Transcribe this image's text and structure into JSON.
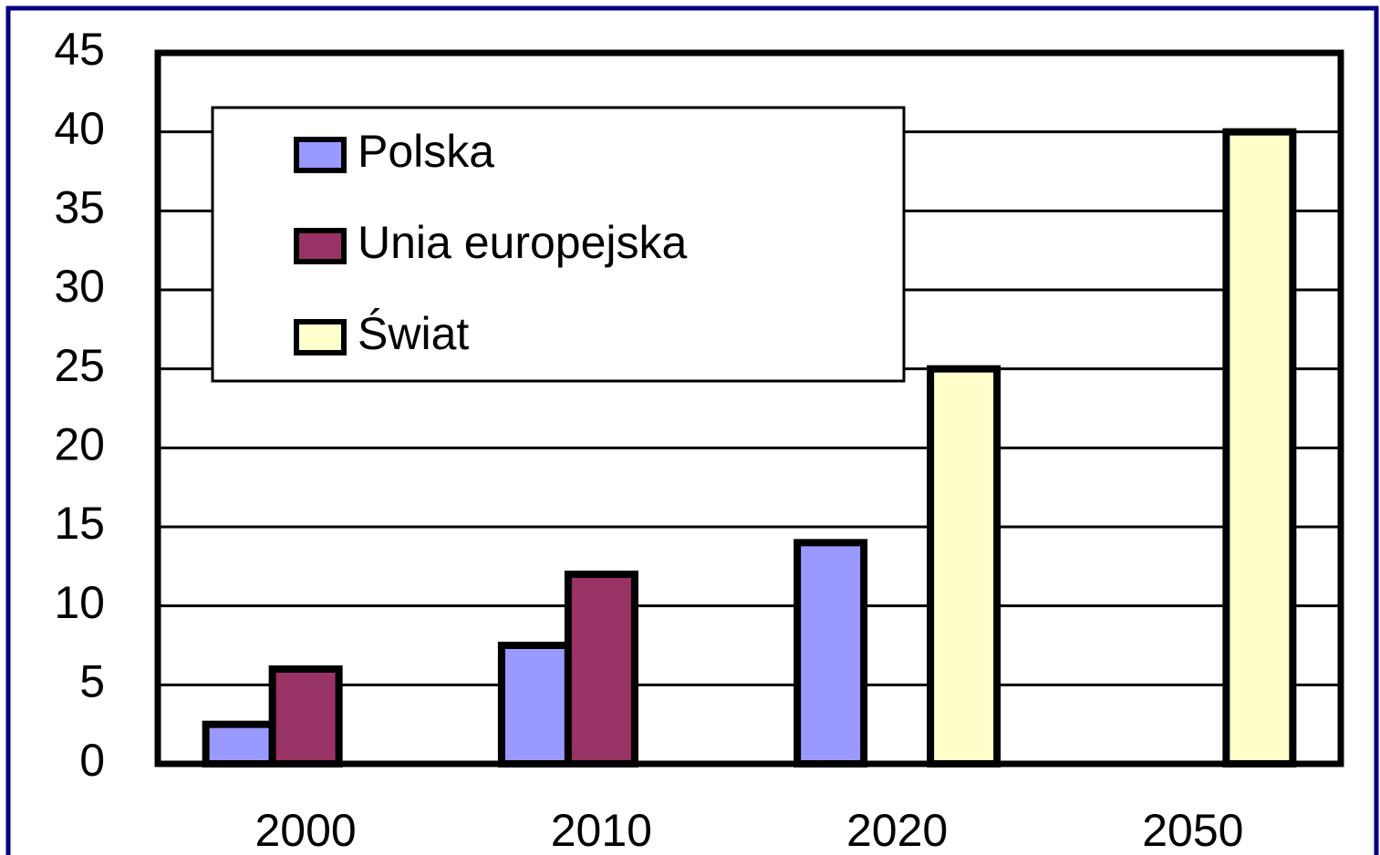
{
  "chart_data": {
    "type": "bar",
    "categories": [
      "2000",
      "2010",
      "2020",
      "2050"
    ],
    "series": [
      {
        "name": "Polska",
        "color": "#9999ff",
        "values": [
          2.5,
          7.5,
          14,
          null
        ]
      },
      {
        "name": "Unia europejska",
        "color": "#993366",
        "values": [
          6,
          12,
          null,
          null
        ]
      },
      {
        "name": "Świat",
        "color": "#ffffcc",
        "values": [
          null,
          null,
          25,
          40
        ]
      }
    ],
    "ylim": [
      0,
      45
    ],
    "yticks": [
      0,
      5,
      10,
      15,
      20,
      25,
      30,
      35,
      40,
      45
    ],
    "grid": true
  }
}
